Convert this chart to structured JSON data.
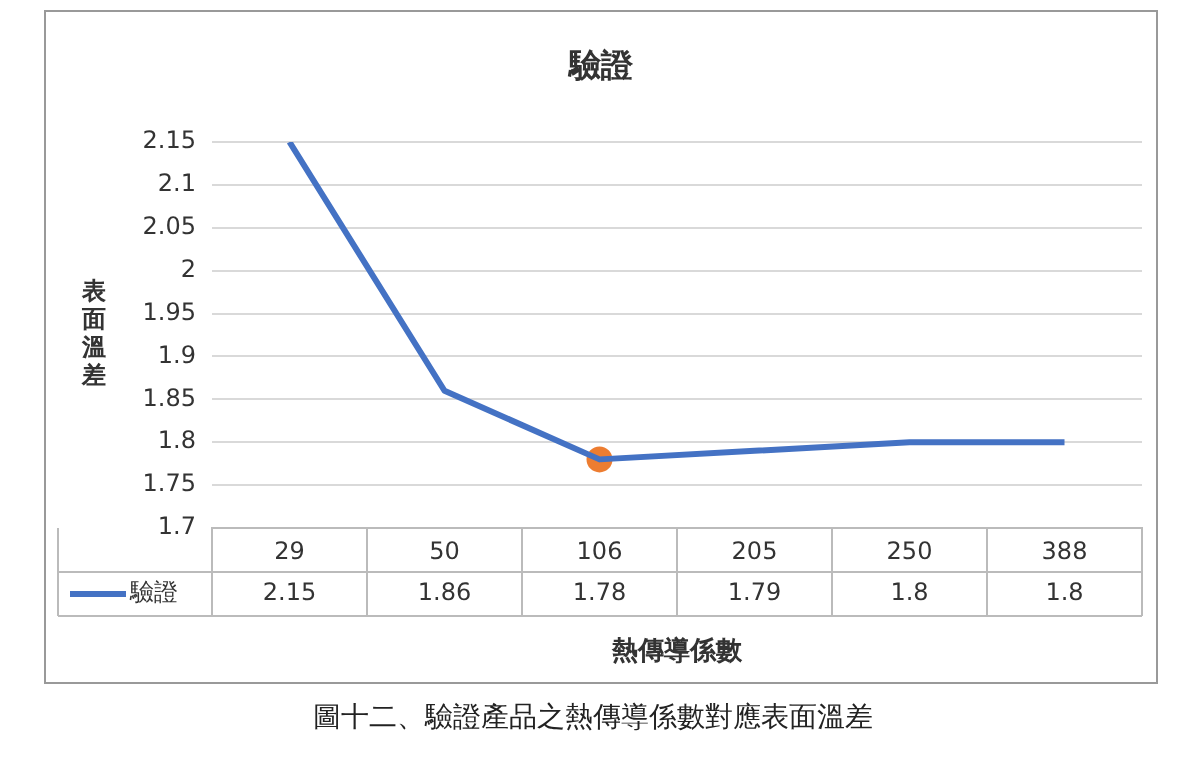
{
  "chart_data": {
    "type": "line",
    "title": "驗證",
    "xlabel": "熱傳導係數",
    "ylabel": "表面溫差",
    "categories": [
      "29",
      "50",
      "106",
      "205",
      "250",
      "388"
    ],
    "series": [
      {
        "name": "驗證",
        "color": "#4472c4",
        "values": [
          2.15,
          1.86,
          1.78,
          1.79,
          1.8,
          1.8
        ],
        "value_labels": [
          "2.15",
          "1.86",
          "1.78",
          "1.79",
          "1.8",
          "1.8"
        ]
      },
      {
        "type": "scatter",
        "color": "#ed7d31",
        "x": [
          "106"
        ],
        "values": [
          1.78
        ],
        "marker": "circle"
      }
    ],
    "ylim": [
      1.7,
      2.15
    ],
    "yticks": [
      1.7,
      1.75,
      1.8,
      1.85,
      1.9,
      1.95,
      2,
      2.05,
      2.1,
      2.15
    ],
    "grid": "y",
    "legend": "bottom",
    "line_style": "solid",
    "annotations": [
      "圖十二、驗證產品之熱傳導係數對應表面溫差"
    ]
  }
}
